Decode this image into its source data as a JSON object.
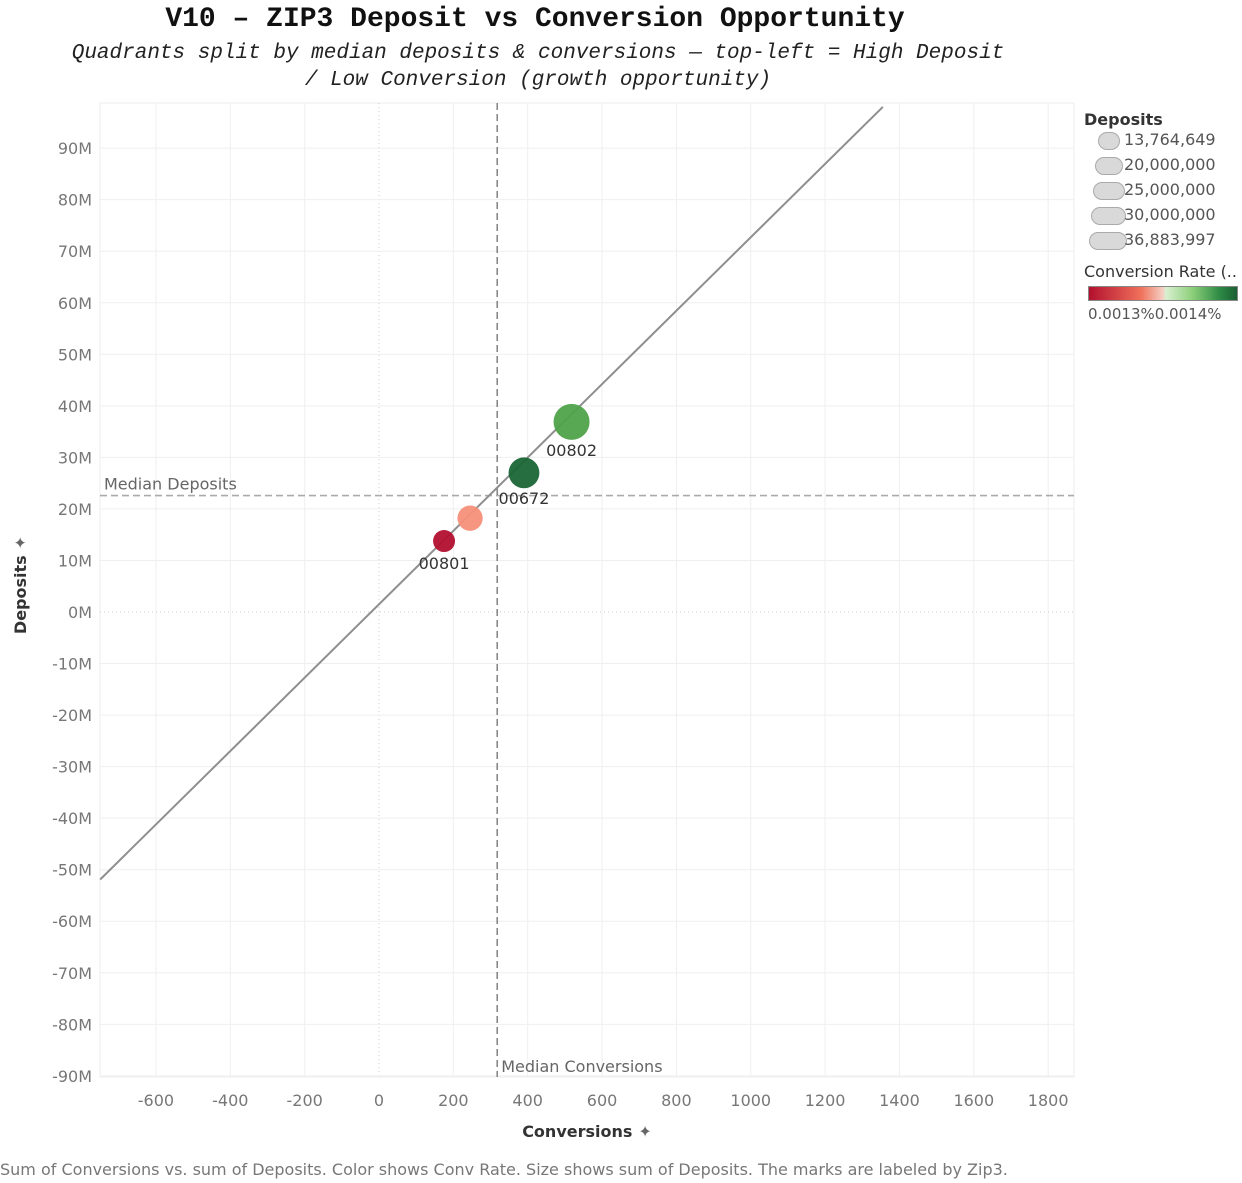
{
  "chart_data": {
    "type": "scatter",
    "title": "V10 – ZIP3 Deposit vs Conversion Opportunity",
    "subtitle_lines": [
      "Quadrants split by median deposits & conversions — top-left = High Deposit",
      "/ Low Conversion (growth opportunity)"
    ],
    "xlabel": "Conversions",
    "ylabel": "Deposits",
    "xlim": [
      -750,
      1860
    ],
    "ylim": [
      -90000000,
      98000000
    ],
    "x_ticks": [
      -600,
      -400,
      -200,
      0,
      200,
      400,
      600,
      800,
      1000,
      1200,
      1400,
      1600,
      1800
    ],
    "x_tick_labels": [
      "-600",
      "-400",
      "-200",
      "0",
      "200",
      "400",
      "600",
      "800",
      "1000",
      "1200",
      "1400",
      "1600",
      "1800"
    ],
    "y_ticks": [
      90000000,
      80000000,
      70000000,
      60000000,
      50000000,
      40000000,
      30000000,
      20000000,
      10000000,
      0,
      -10000000,
      -20000000,
      -30000000,
      -40000000,
      -50000000,
      -60000000,
      -70000000,
      -80000000,
      -90000000
    ],
    "y_tick_labels": [
      "90M",
      "80M",
      "70M",
      "60M",
      "50M",
      "40M",
      "30M",
      "20M",
      "10M",
      "0M",
      "-10M",
      "-20M",
      "-30M",
      "-40M",
      "-50M",
      "-60M",
      "-70M",
      "-80M",
      "-90M"
    ],
    "grid": true,
    "points": [
      {
        "label": "00801",
        "x": 175,
        "y": 13764649,
        "size": 13764649,
        "color": "#b2102f"
      },
      {
        "label": "",
        "x": 245,
        "y": 18200000,
        "size": 18200000,
        "color": "#f5907a"
      },
      {
        "label": "00672",
        "x": 390,
        "y": 27000000,
        "size": 27000000,
        "color": "#1a6536"
      },
      {
        "label": "00802",
        "x": 518,
        "y": 36883997,
        "size": 36883997,
        "color": "#4ea24a"
      }
    ],
    "trend_line": {
      "slope": 71200,
      "intercept": 1500000
    },
    "reference_lines": [
      {
        "axis": "y",
        "value": 22600000,
        "label": "Median Deposits"
      },
      {
        "axis": "x",
        "value": 318,
        "label": "Median Conversions"
      }
    ],
    "size_legend": {
      "title": "Deposits",
      "entries": [
        "13,764,649",
        "20,000,000",
        "25,000,000",
        "30,000,000",
        "36,883,997"
      ]
    },
    "color_legend": {
      "title": "Conversion Rate (..",
      "min_label": "0.0013%",
      "max_label": "0.0014%",
      "colors": [
        "#b2102f",
        "#f0705a",
        "#d8efd0",
        "#2e8b45",
        "#1a5e33"
      ]
    },
    "legend_position": "right"
  },
  "caption": "Sum of Conversions vs. sum of Deposits.  Color shows Conv Rate.  Size shows sum of Deposits.  The marks are labeled by Zip3."
}
